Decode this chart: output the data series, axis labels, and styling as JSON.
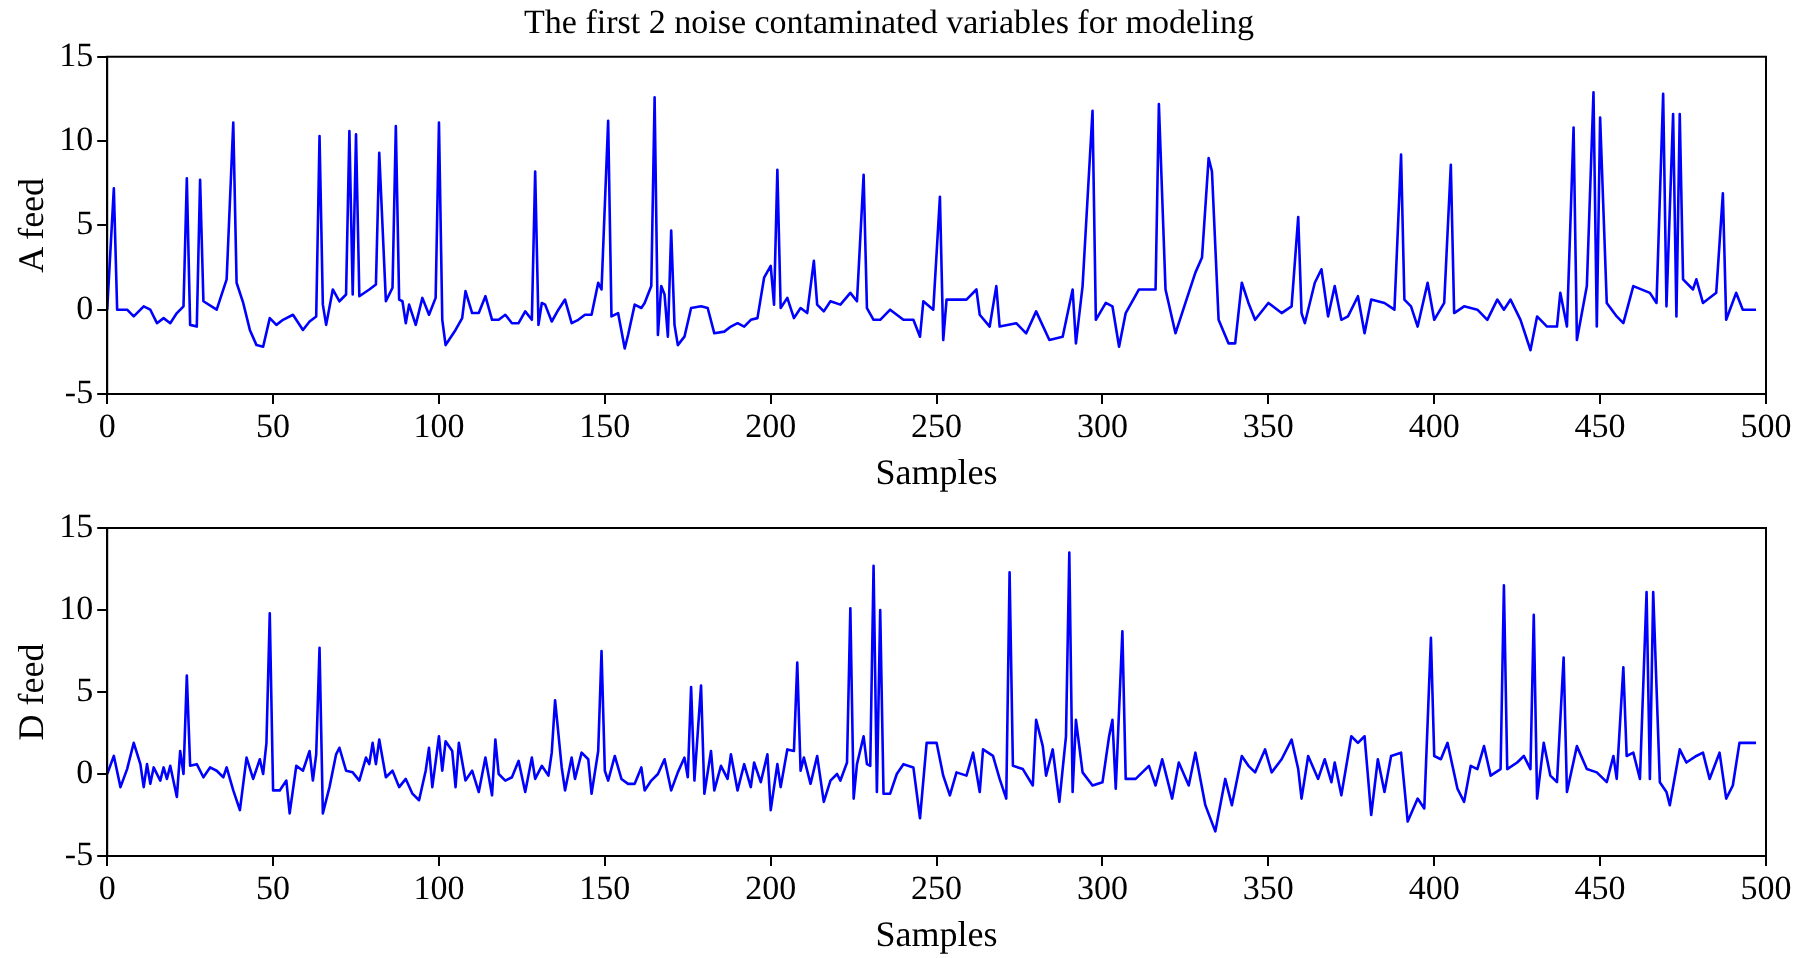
{
  "chart_data": [
    {
      "type": "line",
      "title": "The first 2 noise contaminated variables for modeling",
      "xlabel": "Samples",
      "ylabel": "A feed",
      "xlim": [
        0,
        500
      ],
      "xticks": [
        0,
        50,
        100,
        150,
        200,
        250,
        300,
        350,
        400,
        450,
        500
      ],
      "ylim": [
        -5,
        15
      ],
      "yticks": [
        -5,
        0,
        5,
        10,
        15
      ],
      "grid": false,
      "legend": false,
      "x": [
        0,
        2,
        3,
        6,
        8,
        11,
        13,
        15,
        17,
        19,
        21,
        23,
        24,
        25,
        27,
        28,
        29,
        33,
        36,
        38,
        39,
        41,
        43,
        45,
        47,
        49,
        51,
        53,
        56,
        59,
        61,
        63,
        64,
        65,
        66,
        68,
        70,
        72,
        73,
        74,
        75,
        76,
        79,
        81,
        82,
        84,
        86,
        87,
        88,
        89,
        90,
        91,
        93,
        95,
        97,
        99,
        100,
        101,
        102,
        103,
        105,
        107,
        108,
        110,
        112,
        114,
        116,
        118,
        120,
        122,
        124,
        126,
        128,
        129,
        130,
        131,
        132,
        134,
        136,
        138,
        140,
        142,
        144,
        146,
        148,
        149,
        151,
        152,
        154,
        156,
        157,
        159,
        161,
        162,
        164,
        165,
        166,
        167,
        168,
        169,
        170,
        171,
        172,
        174,
        176,
        179,
        181,
        183,
        186,
        188,
        190,
        192,
        194,
        196,
        198,
        200,
        201,
        202,
        203,
        205,
        207,
        209,
        211,
        213,
        214,
        216,
        218,
        221,
        224,
        226,
        228,
        229,
        231,
        233,
        236,
        238,
        240,
        243,
        245,
        246,
        249,
        251,
        252,
        253,
        259,
        262,
        263,
        266,
        268,
        269,
        274,
        277,
        280,
        284,
        288,
        291,
        292,
        294,
        297,
        298,
        301,
        303,
        305,
        307,
        311,
        316,
        317,
        319,
        322,
        325,
        328,
        330,
        332,
        333,
        335,
        338,
        340,
        342,
        344,
        346,
        350,
        354,
        357,
        359,
        360,
        361,
        364,
        366,
        368,
        370,
        372,
        374,
        377,
        379,
        381,
        385,
        388,
        390,
        391,
        393,
        395,
        398,
        400,
        403,
        405,
        406,
        409,
        413,
        416,
        419,
        421,
        423,
        426,
        429,
        431,
        434,
        437,
        438,
        440,
        442,
        443,
        446,
        448,
        449,
        450,
        452,
        455,
        457,
        460,
        465,
        467,
        469,
        470,
        472,
        473,
        474,
        475,
        478,
        479,
        481,
        485,
        487,
        488,
        491,
        493,
        497
      ],
      "series": [
        {
          "color": "#0000ff",
          "values": [
            0,
            7.2,
            0,
            0,
            -0.4,
            0.2,
            0,
            -0.8,
            -0.5,
            -0.8,
            -0.2,
            0.2,
            7.8,
            -0.9,
            -1.0,
            7.7,
            0.5,
            0,
            1.8,
            11.1,
            1.6,
            0.4,
            -1.2,
            -2.1,
            -2.2,
            -0.5,
            -0.9,
            -0.6,
            -0.3,
            -1.2,
            -0.7,
            -0.4,
            10.3,
            0.3,
            -0.9,
            1.2,
            0.5,
            0.9,
            10.6,
            0.9,
            10.4,
            0.8,
            1.2,
            1.5,
            9.3,
            0.5,
            1.3,
            10.9,
            0.6,
            0.5,
            -0.8,
            0.3,
            -0.9,
            0.7,
            -0.3,
            0.7,
            11.1,
            -0.6,
            -2.1,
            -1.8,
            -1.2,
            -0.5,
            1.1,
            -0.2,
            -0.2,
            0.8,
            -0.6,
            -0.6,
            -0.3,
            -0.8,
            -0.8,
            -0.1,
            -0.6,
            8.2,
            -0.9,
            0.4,
            0.3,
            -0.7,
            0,
            0.6,
            -0.8,
            -0.6,
            -0.3,
            -0.3,
            1.6,
            1.2,
            11.2,
            -0.4,
            -0.2,
            -2.3,
            -1.5,
            0.3,
            0.1,
            0.4,
            1.4,
            12.6,
            -1.5,
            1.4,
            0.9,
            -1.6,
            4.7,
            -0.9,
            -2.1,
            -1.6,
            0.1,
            0.2,
            0.1,
            -1.4,
            -1.3,
            -1.0,
            -0.8,
            -1.0,
            -0.6,
            -0.5,
            1.9,
            2.6,
            0.3,
            8.3,
            0.1,
            0.7,
            -0.5,
            0.1,
            -0.2,
            2.9,
            0.3,
            -0.1,
            0.5,
            0.3,
            1.0,
            0.5,
            8.0,
            0.1,
            -0.6,
            -0.6,
            0,
            -0.3,
            -0.6,
            -0.6,
            -1.6,
            0.5,
            0,
            6.7,
            -1.8,
            0.6,
            0.6,
            1.2,
            -0.3,
            -1.0,
            1.4,
            -1.0,
            -0.8,
            -1.4,
            -0.1,
            -1.8,
            -1.6,
            1.2,
            -2.0,
            1.4,
            11.8,
            -0.6,
            0.4,
            0.2,
            -2.2,
            -0.2,
            1.2,
            1.2,
            12.2,
            1.2,
            -1.4,
            0.4,
            2.2,
            3.1,
            9.0,
            8.2,
            -0.6,
            -2.0,
            -2.0,
            1.6,
            0.4,
            -0.6,
            0.4,
            -0.2,
            0.2,
            5.5,
            -0.2,
            -0.8,
            1.6,
            2.4,
            -0.4,
            1.4,
            -0.6,
            -0.4,
            0.8,
            -1.4,
            0.6,
            0.4,
            0,
            9.2,
            0.6,
            0.2,
            -1.0,
            1.6,
            -0.6,
            0.4,
            8.6,
            -0.2,
            0.2,
            0,
            -0.6,
            0.6,
            0,
            0.6,
            -0.6,
            -2.4,
            -0.4,
            -1.0,
            -1.0,
            1.0,
            -1.0,
            10.8,
            -1.8,
            1.4,
            12.9,
            -1.0,
            11.4,
            0.4,
            -0.4,
            -0.8,
            1.4,
            1.0,
            0.4,
            12.8,
            0.2,
            11.6,
            -0.4,
            11.6,
            1.8,
            1.2,
            1.8,
            0.4,
            1.0,
            6.9,
            -0.6,
            1.0,
            0,
            0
          ]
        }
      ]
    },
    {
      "type": "line",
      "xlabel": "Samples",
      "ylabel": "D feed",
      "xlim": [
        0,
        500
      ],
      "xticks": [
        0,
        50,
        100,
        150,
        200,
        250,
        300,
        350,
        400,
        450,
        500
      ],
      "ylim": [
        -5,
        15
      ],
      "yticks": [
        -5,
        0,
        5,
        10,
        15
      ],
      "grid": false,
      "legend": false,
      "x": [
        0,
        2,
        4,
        6,
        8,
        10,
        11,
        12,
        13,
        14,
        16,
        17,
        18,
        19,
        21,
        22,
        23,
        24,
        25,
        27,
        29,
        31,
        33,
        35,
        36,
        38,
        40,
        42,
        44,
        46,
        47,
        48,
        49,
        50,
        52,
        54,
        55,
        57,
        59,
        61,
        62,
        63,
        64,
        65,
        67,
        69,
        70,
        72,
        74,
        76,
        78,
        79,
        80,
        81,
        82,
        84,
        86,
        88,
        90,
        92,
        94,
        96,
        97,
        98,
        100,
        101,
        102,
        104,
        105,
        106,
        108,
        110,
        112,
        114,
        116,
        117,
        118,
        120,
        122,
        124,
        126,
        128,
        129,
        131,
        133,
        134,
        135,
        137,
        138,
        140,
        141,
        143,
        145,
        146,
        148,
        149,
        150,
        151,
        153,
        155,
        157,
        159,
        161,
        162,
        164,
        166,
        168,
        170,
        172,
        174,
        175,
        176,
        177,
        179,
        180,
        182,
        183,
        185,
        187,
        188,
        190,
        192,
        194,
        195,
        197,
        199,
        200,
        202,
        203,
        205,
        207,
        208,
        209,
        210,
        212,
        214,
        216,
        218,
        220,
        221,
        223,
        224,
        225,
        226,
        228,
        229,
        230,
        231,
        232,
        233,
        234,
        236,
        238,
        240,
        243,
        245,
        247,
        250,
        252,
        254,
        256,
        259,
        261,
        263,
        264,
        267,
        269,
        271,
        272,
        273,
        276,
        279,
        280,
        282,
        283,
        285,
        287,
        289,
        290,
        291,
        292,
        294,
        297,
        300,
        302,
        303,
        304,
        306,
        307,
        310,
        314,
        316,
        318,
        321,
        323,
        326,
        328,
        331,
        334,
        337,
        339,
        342,
        344,
        346,
        349,
        351,
        354,
        357,
        359,
        360,
        362,
        365,
        367,
        369,
        370,
        372,
        375,
        377,
        379,
        381,
        383,
        385,
        387,
        390,
        392,
        395,
        397,
        399,
        400,
        402,
        404,
        407,
        409,
        411,
        413,
        415,
        417,
        420,
        421,
        422,
        425,
        427,
        429,
        430,
        431,
        433,
        435,
        437,
        439,
        440,
        443,
        446,
        449,
        452,
        454,
        455,
        457,
        458,
        460,
        462,
        464,
        465,
        466,
        468,
        470,
        471,
        474,
        476,
        479,
        481,
        483,
        486,
        488,
        490,
        492,
        497
      ],
      "series": [
        {
          "color": "#0000ff",
          "values": [
            0,
            1.1,
            -0.8,
            0.3,
            1.9,
            0.6,
            -0.8,
            0.6,
            -0.6,
            0.4,
            -0.4,
            0.4,
            -0.3,
            0.5,
            -1.4,
            1.4,
            0,
            6.0,
            0.5,
            0.6,
            -0.2,
            0.4,
            0.2,
            -0.2,
            0.4,
            -1.0,
            -2.2,
            1.0,
            -0.3,
            0.9,
            0,
            1.9,
            9.8,
            -1.0,
            -1.0,
            -0.4,
            -2.4,
            0.5,
            0.2,
            1.4,
            -0.4,
            1.2,
            7.7,
            -2.4,
            -0.8,
            1.2,
            1.6,
            0.2,
            0.1,
            -0.4,
            1.0,
            0.6,
            1.9,
            0.6,
            2.1,
            -0.2,
            0.2,
            -0.8,
            -0.3,
            -1.2,
            -1.6,
            0.2,
            1.6,
            -0.8,
            2.3,
            0.2,
            2.0,
            1.4,
            -0.8,
            1.9,
            -0.4,
            0.2,
            -1.1,
            1.0,
            -1.3,
            2.1,
            0,
            -0.4,
            -0.2,
            0.8,
            -1.1,
            1.0,
            -0.3,
            0.5,
            -0.1,
            1.3,
            4.5,
            0.4,
            -1.0,
            1.0,
            -0.3,
            1.3,
            0.9,
            -1.2,
            1.4,
            7.5,
            0.2,
            -0.4,
            1.1,
            -0.3,
            -0.6,
            -0.6,
            0.4,
            -1.0,
            -0.4,
            0,
            0.9,
            -1.0,
            0.1,
            1.0,
            -0.2,
            5.3,
            -0.4,
            5.4,
            -1.2,
            1.4,
            -1.0,
            0.5,
            -0.3,
            1.2,
            -1.0,
            0.6,
            -0.8,
            0.7,
            -0.5,
            1.2,
            -2.2,
            0.6,
            -0.8,
            1.5,
            1.4,
            6.8,
            0.2,
            1.0,
            -0.6,
            1.1,
            -1.7,
            -0.4,
            0,
            -0.4,
            0.7,
            10.1,
            -1.5,
            0.6,
            2.3,
            0.6,
            0.5,
            12.7,
            -1.1,
            10.0,
            -1.2,
            -1.2,
            0,
            0.6,
            0.4,
            -2.7,
            1.9,
            1.9,
            -0.1,
            -1.3,
            0.1,
            -0.1,
            1.3,
            -1.1,
            1.5,
            1.1,
            -0.3,
            -1.5,
            12.3,
            0.5,
            0.3,
            -0.7,
            3.3,
            1.7,
            -0.1,
            1.5,
            -1.7,
            2.3,
            13.5,
            -1.1,
            3.3,
            0.1,
            -0.7,
            -0.5,
            2.3,
            3.3,
            -0.9,
            8.7,
            -0.3,
            -0.3,
            0.5,
            -0.7,
            0.9,
            -1.5,
            0.7,
            -0.7,
            1.3,
            -1.9,
            -3.5,
            -0.3,
            -1.9,
            1.1,
            0.5,
            0.1,
            1.5,
            0.1,
            0.9,
            2.1,
            0.3,
            -1.5,
            1.1,
            -0.3,
            0.9,
            -0.5,
            0.7,
            -1.3,
            2.3,
            1.9,
            2.3,
            -2.5,
            0.9,
            -1.1,
            1.1,
            1.3,
            -2.9,
            -1.5,
            -2.1,
            8.3,
            1.1,
            0.9,
            1.9,
            -0.9,
            -1.7,
            0.5,
            0.3,
            1.7,
            -0.1,
            0.3,
            11.5,
            0.3,
            0.7,
            1.1,
            0.3,
            9.7,
            -1.5,
            1.9,
            -0.1,
            -0.5,
            7.1,
            -1.1,
            1.7,
            0.3,
            0.1,
            -0.5,
            1.1,
            -0.3,
            6.5,
            1.1,
            1.3,
            -0.3,
            11.1,
            -0.3,
            11.1,
            -0.5,
            -1.1,
            -1.9,
            1.5,
            0.7,
            1.1,
            1.3,
            -0.3,
            1.3,
            -1.5,
            -0.7,
            1.9,
            1.9
          ]
        }
      ]
    }
  ]
}
